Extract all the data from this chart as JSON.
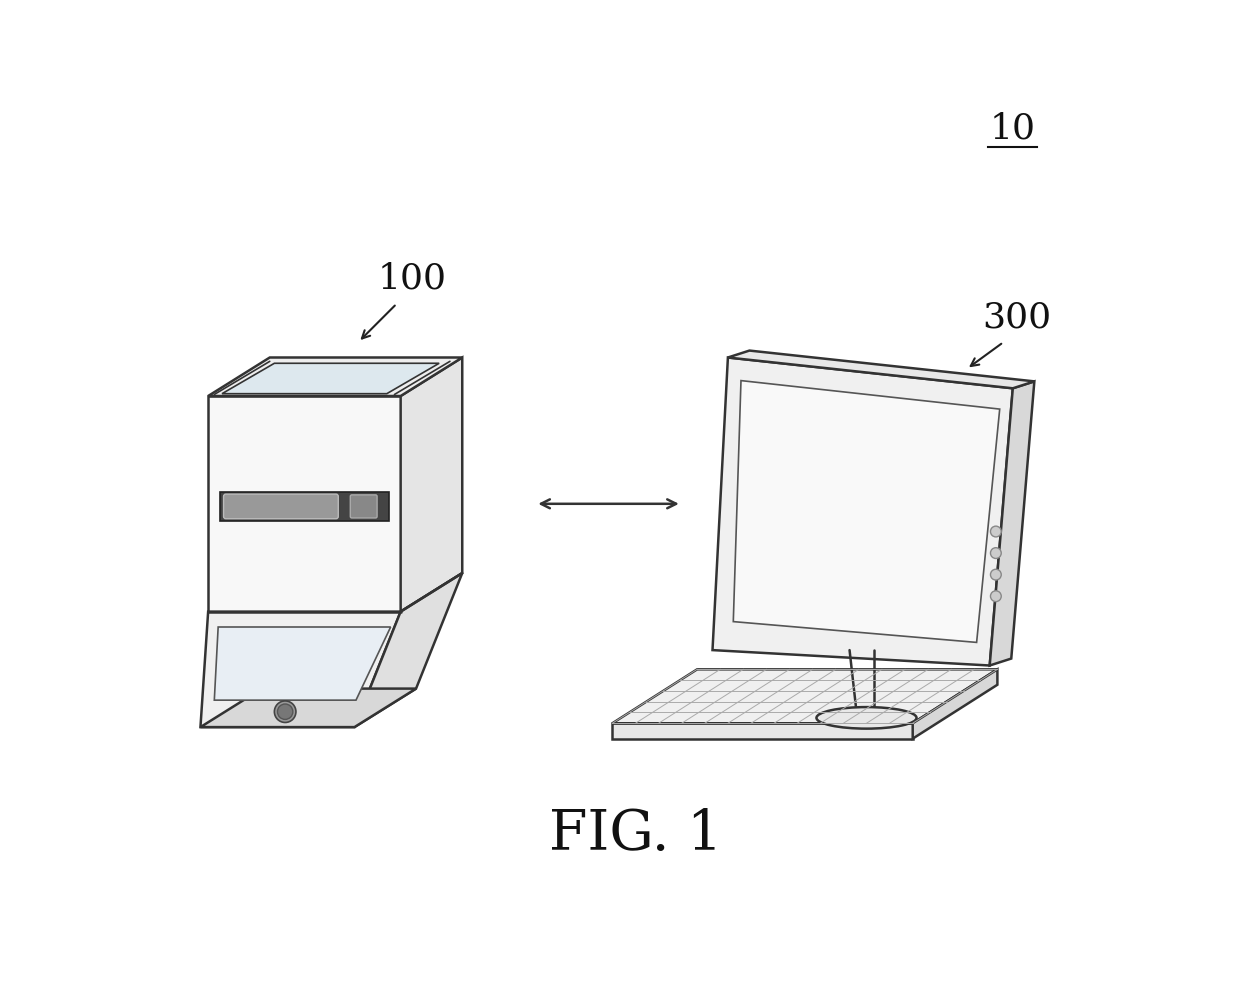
{
  "bg_color": "#ffffff",
  "line_color": "#333333",
  "label_10": "10",
  "label_100": "100",
  "label_300": "300",
  "fig_label": "FIG. 1",
  "fig_label_fontsize": 40,
  "ref_fontsize": 24,
  "arrow_color": "#333333"
}
